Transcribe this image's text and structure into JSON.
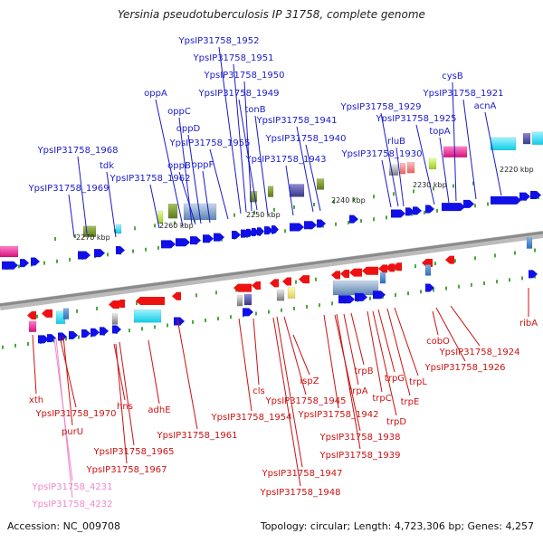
{
  "header": {
    "title": "Yersinia pseudotuberculosis IP 31758, complete genome"
  },
  "footer": {
    "accession": "Accession: NC_009708",
    "topology": "Topology: circular; Length: 4,723,306 bp; Genes: 4,257"
  },
  "colors": {
    "forward_label": "#1a1acc",
    "reverse_label": "#cc1111",
    "rna_label": "#ee88cc",
    "backbone": "#999999"
  },
  "scale_labels": [
    "2270 kbp",
    "2260 kbp",
    "2250 kbp",
    "2240 kbp",
    "2230 kbp",
    "2220 kbp"
  ],
  "genes_forward": [
    "YpsIP31758_1952",
    "YpsIP31758_1951",
    "YpsIP31758_1950",
    "YpsIP31758_1949",
    "oppA",
    "oppC",
    "oppD",
    "YpsIP31758_1955",
    "oppB",
    "oppF",
    "YpsIP31758_1962",
    "tdk",
    "YpsIP31758_1968",
    "YpsIP31758_1969",
    "tonB",
    "YpsIP31758_1941",
    "YpsIP31758_1940",
    "YpsIP31758_1943",
    "cysB",
    "YpsIP31758_1921",
    "acnA",
    "YpsIP31758_1929",
    "YpsIP31758_1925",
    "topA",
    "rluB",
    "YpsIP31758_1930"
  ],
  "genes_reverse": [
    "xth",
    "YpsIP31758_1970",
    "purU",
    "hns",
    "adhE",
    "YpsIP31758_1965",
    "YpsIP31758_1967",
    "YpsIP31758_1961",
    "cls",
    "YpsIP31758_1954",
    "ispZ",
    "YpsIP31758_1945",
    "YpsIP31758_1942",
    "trpB",
    "trpA",
    "trpC",
    "trpG",
    "trpD",
    "trpE",
    "trpL",
    "YpsIP31758_1938",
    "YpsIP31758_1939",
    "YpsIP31758_1947",
    "YpsIP31758_1948",
    "cobO",
    "YpsIP31758_1924",
    "YpsIP31758_1926",
    "ribA"
  ],
  "genes_rna": [
    "YpsIP31758_4231",
    "YpsIP31758_4232"
  ]
}
